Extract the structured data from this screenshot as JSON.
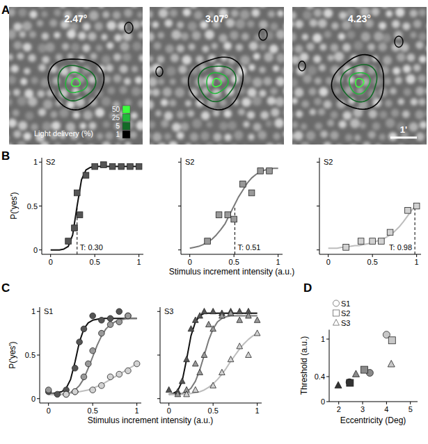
{
  "panel_labels": [
    "A",
    "B",
    "C",
    "D"
  ],
  "images": {
    "titles": [
      "2.47°",
      "3.07°",
      "4.23°"
    ],
    "legend": {
      "title": "Light delivery (%)",
      "levels": [
        50,
        25,
        5,
        1
      ],
      "colors": [
        "#3cff3c",
        "#22b83a",
        "#126a26",
        "#000000"
      ]
    },
    "scale_bar": "1'"
  },
  "chart_data": [
    {
      "type": "scatter",
      "title": "S2",
      "ylabel": "P('yes')",
      "xlim": [
        -0.1,
        1.05
      ],
      "ylim": [
        -0.05,
        1.05
      ],
      "xticks": [
        0,
        0.5,
        1
      ],
      "yticks": [
        0,
        0.5,
        1
      ],
      "tick_labels": true,
      "threshold": {
        "x": 0.3,
        "y": 0.5,
        "label": "T: 0.30"
      },
      "series": [
        {
          "type": "line",
          "color": "#111111",
          "x": [
            0,
            0.05,
            0.1,
            0.15,
            0.2,
            0.25,
            0.3,
            0.35,
            0.4,
            0.45,
            0.5,
            0.55,
            0.6,
            0.65,
            0.7,
            0.75,
            0.8,
            0.85,
            0.9,
            0.95,
            1
          ],
          "values": [
            0,
            0,
            0,
            0.01,
            0.04,
            0.17,
            0.5,
            0.8,
            0.91,
            0.94,
            0.95,
            0.95,
            0.95,
            0.95,
            0.95,
            0.95,
            0.95,
            0.95,
            0.95,
            0.95,
            0.95
          ]
        },
        {
          "type": "scatter",
          "marker": "square",
          "color": "#555555",
          "x": [
            0.2,
            0.27,
            0.3,
            0.33,
            0.4,
            0.5,
            0.6,
            0.7,
            0.8,
            0.9,
            1
          ],
          "values": [
            0.1,
            0.25,
            0.65,
            0.4,
            0.85,
            0.95,
            0.97,
            0.95,
            0.95,
            0.95,
            0.95
          ]
        }
      ]
    },
    {
      "type": "scatter",
      "title": "S2",
      "xlabel": "Stimulus increment intensity (a.u.)",
      "xlim": [
        -0.1,
        1.05
      ],
      "ylim": [
        -0.05,
        1.05
      ],
      "xticks": [
        0,
        0.5,
        1
      ],
      "yticks": [
        0,
        0.5,
        1
      ],
      "tick_labels": "x",
      "threshold": {
        "x": 0.51,
        "y": 0.5,
        "label": "T: 0.51"
      },
      "series": [
        {
          "type": "line",
          "color": "#7a7a7a",
          "x": [
            0,
            0.05,
            0.1,
            0.15,
            0.2,
            0.25,
            0.3,
            0.35,
            0.4,
            0.45,
            0.5,
            0.55,
            0.6,
            0.65,
            0.7,
            0.75,
            0.8,
            0.85,
            0.9,
            0.95,
            1
          ],
          "values": [
            0.02,
            0.03,
            0.04,
            0.06,
            0.09,
            0.12,
            0.17,
            0.23,
            0.3,
            0.4,
            0.5,
            0.6,
            0.68,
            0.76,
            0.82,
            0.86,
            0.89,
            0.91,
            0.92,
            0.93,
            0.93
          ]
        },
        {
          "type": "scatter",
          "marker": "square",
          "color": "#999999",
          "x": [
            0.2,
            0.33,
            0.43,
            0.5,
            0.6,
            0.7,
            0.8,
            0.9
          ],
          "values": [
            0.1,
            0.4,
            0.4,
            0.35,
            0.75,
            0.65,
            0.9,
            0.9
          ]
        }
      ]
    },
    {
      "type": "scatter",
      "title": "S2",
      "xlim": [
        -0.1,
        1.05
      ],
      "ylim": [
        -0.05,
        1.05
      ],
      "xticks": [
        0,
        0.5,
        1
      ],
      "yticks": [
        0,
        0.5,
        1
      ],
      "tick_labels": "x",
      "threshold": {
        "x": 0.98,
        "y": 0.5,
        "label": "T: 0.98"
      },
      "series": [
        {
          "type": "line",
          "color": "#bdbdbd",
          "x": [
            0,
            0.05,
            0.1,
            0.15,
            0.2,
            0.25,
            0.3,
            0.35,
            0.4,
            0.45,
            0.5,
            0.55,
            0.6,
            0.65,
            0.7,
            0.75,
            0.8,
            0.85,
            0.9,
            0.95,
            1
          ],
          "values": [
            0.02,
            0.02,
            0.02,
            0.03,
            0.03,
            0.04,
            0.05,
            0.05,
            0.06,
            0.07,
            0.08,
            0.1,
            0.12,
            0.14,
            0.17,
            0.21,
            0.26,
            0.32,
            0.39,
            0.46,
            0.52
          ]
        },
        {
          "type": "scatter",
          "marker": "square",
          "color": "#d2d2d2",
          "x": [
            0.2,
            0.37,
            0.5,
            0.6,
            0.7,
            0.9,
            1
          ],
          "values": [
            0.03,
            0.1,
            0.1,
            0.1,
            0.2,
            0.45,
            0.5
          ]
        }
      ]
    },
    {
      "type": "scatter",
      "title": "S1",
      "ylabel": "P('yes')",
      "xlabel": "Stimulus increment intensity (a.u.)",
      "xlim": [
        -0.1,
        1.05
      ],
      "ylim": [
        -0.05,
        1.05
      ],
      "xticks": [
        0,
        0.5,
        1
      ],
      "yticks": [
        0,
        0.5,
        1
      ],
      "tick_labels": true,
      "series": [
        {
          "type": "line",
          "color": "#111111",
          "x": [
            0,
            0.05,
            0.1,
            0.15,
            0.2,
            0.25,
            0.3,
            0.35,
            0.4,
            0.45,
            0.5,
            0.55,
            0.6,
            0.65,
            0.7,
            0.75,
            0.8,
            0.85,
            0.9,
            0.95,
            1
          ],
          "values": [
            0.06,
            0.06,
            0.07,
            0.08,
            0.12,
            0.22,
            0.42,
            0.65,
            0.8,
            0.87,
            0.9,
            0.91,
            0.92,
            0.92,
            0.92,
            0.92,
            0.92,
            0.92,
            0.92,
            0.92,
            0.92
          ]
        },
        {
          "type": "line",
          "color": "#7a7a7a",
          "x": [
            0,
            0.05,
            0.1,
            0.15,
            0.2,
            0.25,
            0.3,
            0.35,
            0.4,
            0.45,
            0.5,
            0.55,
            0.6,
            0.65,
            0.7,
            0.75,
            0.8,
            0.85,
            0.9,
            0.95,
            1
          ],
          "values": [
            0.05,
            0.05,
            0.05,
            0.05,
            0.06,
            0.07,
            0.1,
            0.15,
            0.23,
            0.35,
            0.48,
            0.61,
            0.72,
            0.8,
            0.85,
            0.88,
            0.9,
            0.91,
            0.92,
            0.92,
            0.92
          ]
        },
        {
          "type": "line",
          "color": "#bdbdbd",
          "x": [
            0,
            0.05,
            0.1,
            0.15,
            0.2,
            0.25,
            0.3,
            0.35,
            0.4,
            0.45,
            0.5,
            0.55,
            0.6,
            0.65,
            0.7,
            0.75,
            0.8,
            0.85,
            0.9,
            0.95,
            1
          ],
          "values": [
            0.05,
            0.05,
            0.05,
            0.05,
            0.06,
            0.06,
            0.07,
            0.08,
            0.09,
            0.1,
            0.12,
            0.14,
            0.16,
            0.19,
            0.22,
            0.25,
            0.28,
            0.31,
            0.34,
            0.37,
            0.4
          ]
        },
        {
          "type": "scatter",
          "marker": "circle",
          "color": "#555555",
          "x": [
            0,
            0.1,
            0.2,
            0.3,
            0.35,
            0.4,
            0.5,
            0.6,
            0.7,
            0.8,
            0.9
          ],
          "values": [
            0.08,
            0.05,
            0.1,
            0.35,
            0.65,
            0.8,
            0.95,
            0.9,
            0.92,
            1,
            0.95
          ]
        },
        {
          "type": "scatter",
          "marker": "circle",
          "color": "#999999",
          "x": [
            0,
            0.2,
            0.3,
            0.4,
            0.45,
            0.5,
            0.6,
            0.7,
            0.8,
            0.9
          ],
          "values": [
            0.1,
            0.05,
            0.08,
            0.25,
            0.4,
            0.55,
            0.75,
            0.85,
            0.88,
            0.95
          ]
        },
        {
          "type": "scatter",
          "marker": "circle",
          "color": "#d2d2d2",
          "x": [
            0.2,
            0.3,
            0.5,
            0.6,
            0.7,
            0.8,
            0.9,
            1
          ],
          "values": [
            0.05,
            0.08,
            0.1,
            0.15,
            0.25,
            0.28,
            0.32,
            0.4
          ]
        }
      ]
    },
    {
      "type": "scatter",
      "title": "S3",
      "xlim": [
        -0.1,
        1.05
      ],
      "ylim": [
        -0.05,
        1.05
      ],
      "xticks": [
        0,
        0.5,
        1
      ],
      "yticks": [
        0,
        0.5,
        1
      ],
      "tick_labels": "x",
      "series": [
        {
          "type": "line",
          "color": "#111111",
          "x": [
            0,
            0.05,
            0.1,
            0.15,
            0.2,
            0.25,
            0.3,
            0.35,
            0.4,
            0.45,
            0.5,
            0.55,
            0.6,
            0.65,
            0.7,
            0.75,
            0.8,
            0.85,
            0.9,
            0.95,
            1
          ],
          "values": [
            0.05,
            0.06,
            0.09,
            0.2,
            0.45,
            0.72,
            0.88,
            0.95,
            0.98,
            0.98,
            0.98,
            0.98,
            0.98,
            0.98,
            0.98,
            0.98,
            0.98,
            0.98,
            0.98,
            0.98,
            0.98
          ]
        },
        {
          "type": "line",
          "color": "#7a7a7a",
          "x": [
            0,
            0.05,
            0.1,
            0.15,
            0.2,
            0.25,
            0.3,
            0.35,
            0.4,
            0.45,
            0.5,
            0.55,
            0.6,
            0.65,
            0.7,
            0.75,
            0.8,
            0.85,
            0.9,
            0.95,
            1
          ],
          "values": [
            0.05,
            0.05,
            0.05,
            0.06,
            0.08,
            0.12,
            0.2,
            0.33,
            0.5,
            0.67,
            0.8,
            0.88,
            0.92,
            0.94,
            0.95,
            0.95,
            0.95,
            0.95,
            0.95,
            0.95,
            0.95
          ]
        },
        {
          "type": "line",
          "color": "#bdbdbd",
          "x": [
            0,
            0.05,
            0.1,
            0.15,
            0.2,
            0.25,
            0.3,
            0.35,
            0.4,
            0.45,
            0.5,
            0.55,
            0.6,
            0.65,
            0.7,
            0.75,
            0.8,
            0.85,
            0.9,
            0.95,
            1
          ],
          "values": [
            0.05,
            0.05,
            0.05,
            0.05,
            0.05,
            0.06,
            0.07,
            0.08,
            0.1,
            0.13,
            0.17,
            0.22,
            0.28,
            0.35,
            0.43,
            0.5,
            0.57,
            0.63,
            0.68,
            0.72,
            0.75
          ]
        },
        {
          "type": "scatter",
          "marker": "triangle",
          "color": "#555555",
          "x": [
            0,
            0.1,
            0.15,
            0.2,
            0.25,
            0.3,
            0.35,
            0.4,
            0.5,
            0.6,
            0.7,
            0.8,
            0.9
          ],
          "values": [
            0.1,
            0.08,
            0.2,
            0.45,
            0.8,
            0.9,
            0.95,
            1,
            1,
            0.98,
            1,
            1,
            1
          ]
        },
        {
          "type": "scatter",
          "marker": "triangle",
          "color": "#999999",
          "x": [
            0.1,
            0.2,
            0.3,
            0.35,
            0.4,
            0.45,
            0.5,
            0.6,
            0.7,
            0.8,
            0.9,
            1
          ],
          "values": [
            0.05,
            0.1,
            0.4,
            0.3,
            0.5,
            0.85,
            0.8,
            0.95,
            0.98,
            0.9,
            0.95,
            0.9
          ]
        },
        {
          "type": "scatter",
          "marker": "triangle",
          "color": "#d2d2d2",
          "x": [
            0.2,
            0.3,
            0.5,
            0.6,
            0.7,
            0.8,
            0.9,
            1
          ],
          "values": [
            0.05,
            0.1,
            0.15,
            0.3,
            0.45,
            0.6,
            0.5,
            0.75
          ]
        }
      ]
    },
    {
      "type": "scatter",
      "xlabel": "Eccentricity (Deg)",
      "ylabel": "Threshold (a.u.)",
      "xlim": [
        1.6,
        5.3
      ],
      "ylim": [
        0,
        1.15
      ],
      "xticks": [
        2,
        3,
        4,
        5
      ],
      "yticks": [
        0,
        0.4,
        1
      ],
      "tick_labels": true,
      "legend": "top-left",
      "series": [
        {
          "name": "S1",
          "marker": "circle",
          "x": [
            2.45,
            3.3,
            4.0
          ],
          "values": [
            0.31,
            0.46,
            1.07
          ],
          "colors": [
            "#333333",
            "#8a8a8a",
            "#c8c8c8"
          ]
        },
        {
          "name": "S2",
          "marker": "square",
          "x": [
            2.47,
            3.07,
            4.23
          ],
          "values": [
            0.3,
            0.51,
            0.98
          ],
          "colors": [
            "#333333",
            "#8a8a8a",
            "#c8c8c8"
          ]
        },
        {
          "name": "S3",
          "marker": "triangle",
          "x": [
            1.98,
            2.72,
            4.2
          ],
          "values": [
            0.26,
            0.44,
            0.6
          ],
          "colors": [
            "#333333",
            "#8a8a8a",
            "#c8c8c8"
          ]
        }
      ]
    }
  ]
}
